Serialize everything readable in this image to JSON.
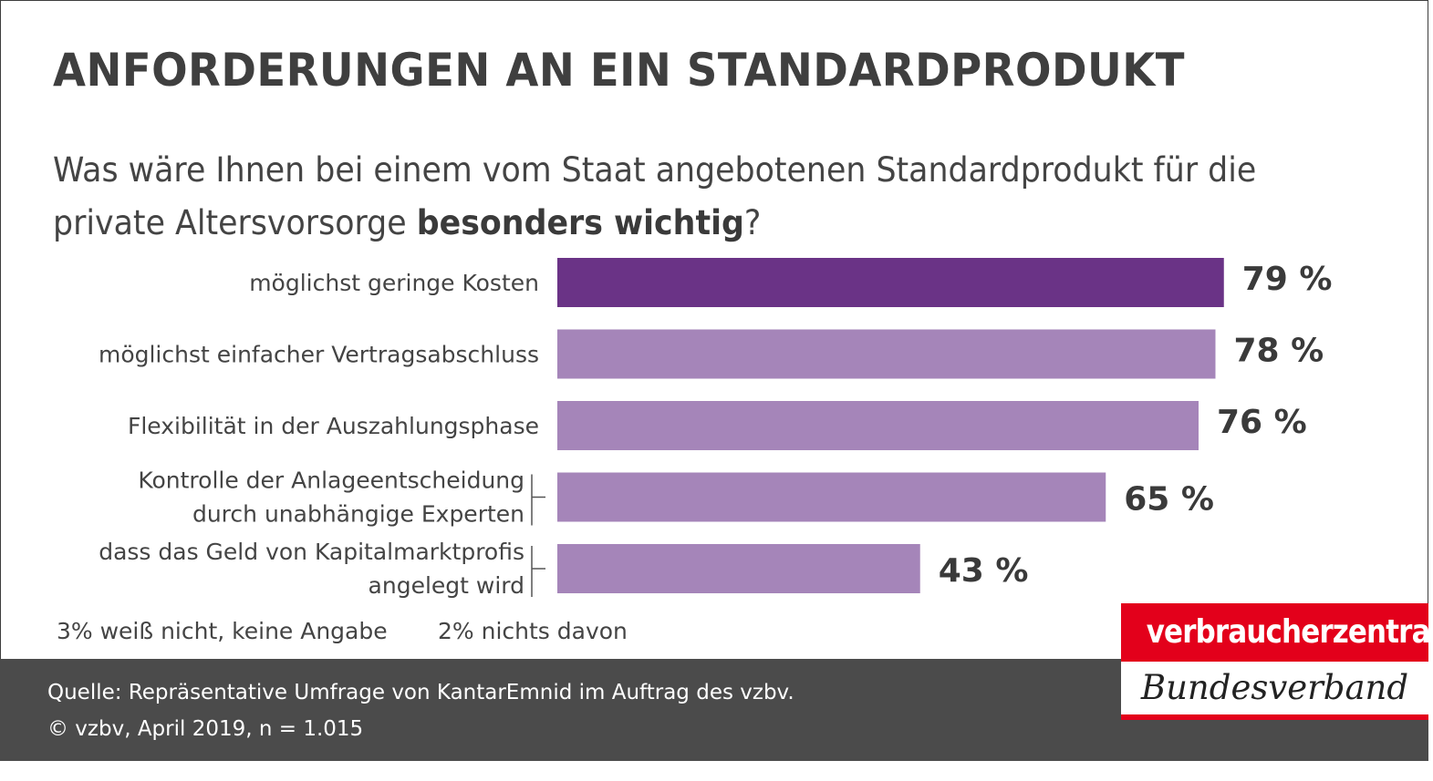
{
  "title": "ANFORDERUNGEN AN EIN STANDARDPRODUKT",
  "question": {
    "text_before": "Was wäre Ihnen bei einem vom Staat angebotenen Standardprodukt für die private Altersvorsorge ",
    "text_bold": "besonders wichtig",
    "text_after": "?"
  },
  "colors": {
    "highlight_bar": "#6a3386",
    "bar": "#a585b9",
    "text": "#3d3d3d",
    "footer_bg": "#4b4b4b",
    "logo_red": "#e3001b"
  },
  "chart_data": {
    "type": "bar",
    "orientation": "horizontal",
    "categories": [
      [
        "möglichst geringe Kosten"
      ],
      [
        "möglichst einfacher Vertragsabschluss"
      ],
      [
        "Flexibilität in der Auszahlungsphase"
      ],
      [
        "Kontrolle der Anlageentscheidung",
        "durch unabhängige Experten"
      ],
      [
        "dass das Geld von Kapitalmarktprofis",
        "angelegt wird"
      ]
    ],
    "values": [
      79,
      78,
      76,
      65,
      43
    ],
    "value_labels": [
      "79 %",
      "78 %",
      "76 %",
      "65 %",
      "43 %"
    ],
    "unit": "%",
    "highlight_index": 0
  },
  "notes": {
    "unknown": "3% weiß nicht, keine Angabe",
    "none": "2% nichts davon"
  },
  "footer": {
    "source": "Quelle: Repräsentative Umfrage von KantarEmnid im Auftrag des vzbv.",
    "copyright": "© vzbv, April 2019, n = 1.015"
  },
  "logo": {
    "top": "verbraucherzentrale",
    "bottom": "Bundesverband"
  }
}
